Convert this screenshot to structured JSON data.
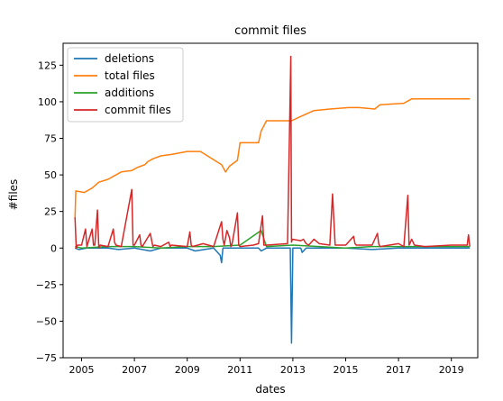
{
  "chart_data": {
    "type": "line",
    "title": "commit files",
    "xlabel": "dates",
    "ylabel": "#files",
    "xlim": [
      2004.3,
      2020.0
    ],
    "ylim": [
      -75,
      140
    ],
    "x_ticks": [
      2005,
      2007,
      2009,
      2011,
      2013,
      2015,
      2017,
      2019
    ],
    "y_ticks": [
      -75,
      -50,
      -25,
      0,
      25,
      50,
      75,
      100,
      125
    ],
    "grid": false,
    "legend": {
      "placement": "top-left",
      "entries": [
        "deletions",
        "total files",
        "additions",
        "commit files"
      ]
    },
    "series": [
      {
        "name": "deletions",
        "color": "#1f77b4",
        "x": [
          2004.75,
          2004.9,
          2005.2,
          2006.0,
          2006.4,
          2007.0,
          2007.6,
          2008.0,
          2009.0,
          2009.3,
          2010.0,
          2010.25,
          2010.3,
          2010.35,
          2010.5,
          2011.0,
          2011.7,
          2011.8,
          2012.0,
          2012.9,
          2012.95,
          2013.0,
          2013.3,
          2013.35,
          2013.5,
          2014.0,
          2015.0,
          2016.0,
          2017.0,
          2018.0,
          2019.0,
          2019.7
        ],
        "y": [
          0,
          -1,
          0,
          0,
          -1,
          0,
          -2,
          0,
          0,
          -2,
          0,
          -5,
          -10,
          0,
          0,
          0,
          0,
          -2,
          0,
          0,
          -65,
          0,
          0,
          -3,
          0,
          0,
          0,
          -1,
          0,
          0,
          0,
          0
        ]
      },
      {
        "name": "total files",
        "color": "#ff7f0e",
        "x": [
          2004.75,
          2004.78,
          2005.1,
          2005.4,
          2005.65,
          2006.0,
          2006.2,
          2006.5,
          2006.9,
          2007.1,
          2007.4,
          2007.5,
          2007.7,
          2008.0,
          2008.4,
          2009.0,
          2009.5,
          2010.3,
          2010.45,
          2010.6,
          2010.9,
          2011.0,
          2011.7,
          2011.8,
          2012.0,
          2012.4,
          2012.95,
          2013.3,
          2013.8,
          2014.4,
          2015.1,
          2015.5,
          2016.1,
          2016.3,
          2017.2,
          2017.5,
          2018.2,
          2019.7
        ],
        "y": [
          20,
          39,
          38,
          41,
          45,
          47,
          49,
          52,
          53,
          55,
          57,
          59,
          61,
          63,
          64,
          66,
          66,
          57,
          52,
          56,
          60,
          72,
          72,
          80,
          87,
          87,
          87,
          90,
          94,
          95,
          96,
          96,
          95,
          98,
          99,
          102,
          102,
          102
        ]
      },
      {
        "name": "additions",
        "color": "#2ca02c",
        "x": [
          2004.75,
          2005.0,
          2006.0,
          2007.0,
          2008.0,
          2009.0,
          2010.0,
          2011.0,
          2011.8,
          2012.0,
          2013.0,
          2014.0,
          2015.0,
          2016.0,
          2017.0,
          2018.0,
          2019.0,
          2019.7
        ],
        "y": [
          1,
          0,
          1,
          1,
          0,
          1,
          1,
          2,
          12,
          1,
          2,
          1,
          0,
          1,
          1,
          1,
          1,
          1
        ]
      },
      {
        "name": "commit files",
        "color": "#d62728",
        "x": [
          2004.75,
          2004.8,
          2004.85,
          2005.0,
          2005.15,
          2005.2,
          2005.4,
          2005.45,
          2005.5,
          2005.6,
          2005.65,
          2005.7,
          2006.0,
          2006.2,
          2006.25,
          2006.3,
          2006.5,
          2006.9,
          2006.95,
          2007.0,
          2007.2,
          2007.25,
          2007.3,
          2007.6,
          2007.7,
          2007.75,
          2008.0,
          2008.3,
          2008.35,
          2008.4,
          2009.0,
          2009.1,
          2009.15,
          2009.2,
          2009.6,
          2010.0,
          2010.3,
          2010.35,
          2010.4,
          2010.5,
          2010.6,
          2010.65,
          2010.7,
          2010.9,
          2010.95,
          2011.0,
          2011.5,
          2011.7,
          2011.85,
          2011.9,
          2012.0,
          2012.8,
          2012.92,
          2012.95,
          2012.98,
          2013.3,
          2013.4,
          2013.5,
          2013.6,
          2013.8,
          2014.0,
          2014.4,
          2014.5,
          2014.6,
          2015.0,
          2015.3,
          2015.35,
          2015.4,
          2016.0,
          2016.2,
          2016.25,
          2016.3,
          2017.0,
          2017.2,
          2017.35,
          2017.4,
          2017.5,
          2017.6,
          2018.0,
          2019.0,
          2019.6,
          2019.65,
          2019.7
        ],
        "y": [
          21,
          0,
          2,
          2,
          13,
          1,
          13,
          2,
          2,
          26,
          0,
          2,
          1,
          13,
          4,
          2,
          1,
          40,
          2,
          2,
          9,
          2,
          1,
          10,
          1,
          2,
          1,
          4,
          1,
          2,
          1,
          11,
          2,
          1,
          3,
          1,
          18,
          6,
          2,
          12,
          7,
          1,
          3,
          24,
          2,
          1,
          2,
          3,
          22,
          2,
          2,
          3,
          131,
          4,
          6,
          5,
          6,
          3,
          2,
          6,
          3,
          2,
          37,
          2,
          2,
          8,
          3,
          2,
          2,
          10,
          3,
          1,
          3,
          1,
          36,
          2,
          6,
          2,
          1,
          2,
          2,
          9,
          1
        ]
      }
    ]
  }
}
